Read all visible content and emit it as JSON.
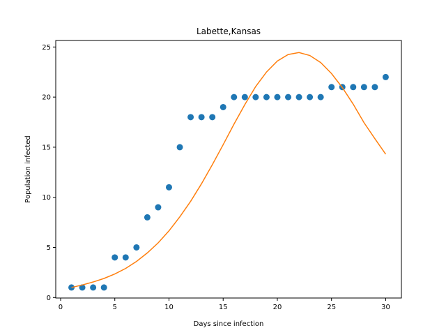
{
  "chart_data": {
    "type": "scatter",
    "title": "Labette,Kansas",
    "xlabel": "Days since infection",
    "ylabel": "Population infected",
    "xlim": [
      -0.45,
      31.45
    ],
    "ylim": [
      -0.05,
      25.65
    ],
    "xticks": [
      0,
      5,
      10,
      15,
      20,
      25,
      30
    ],
    "yticks": [
      0,
      5,
      10,
      15,
      20,
      25
    ],
    "grid": false,
    "series": [
      {
        "kind": "scatter",
        "color": "#1f77b4",
        "x": [
          1,
          2,
          3,
          4,
          5,
          6,
          7,
          8,
          9,
          10,
          11,
          12,
          13,
          14,
          15,
          16,
          17,
          18,
          19,
          20,
          21,
          22,
          23,
          24,
          25,
          26,
          27,
          28,
          29,
          30
        ],
        "y": [
          1,
          1,
          1,
          1,
          4,
          4,
          5,
          8,
          9,
          11,
          15,
          18,
          18,
          18,
          19,
          20,
          20,
          20,
          20,
          20,
          20,
          20,
          20,
          20,
          21,
          21,
          21,
          21,
          21,
          22
        ]
      },
      {
        "kind": "line",
        "color": "#ff7f0e",
        "x": [
          1,
          2,
          3,
          4,
          5,
          6,
          7,
          8,
          9,
          10,
          11,
          12,
          13,
          14,
          15,
          16,
          17,
          18,
          19,
          20,
          21,
          22,
          23,
          24,
          25,
          26,
          27,
          28,
          29,
          30
        ],
        "y": [
          1.0,
          1.25,
          1.55,
          1.9,
          2.35,
          2.9,
          3.6,
          4.45,
          5.45,
          6.65,
          8.05,
          9.6,
          11.35,
          13.25,
          15.25,
          17.3,
          19.25,
          21.05,
          22.5,
          23.6,
          24.25,
          24.45,
          24.15,
          23.45,
          22.35,
          20.95,
          19.3,
          17.45,
          15.85,
          14.3
        ]
      }
    ]
  }
}
